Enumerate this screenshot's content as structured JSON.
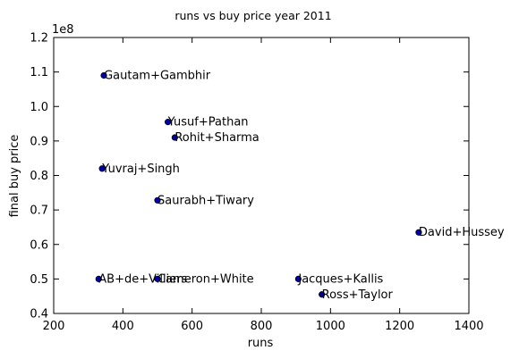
{
  "chart_data": {
    "type": "scatter",
    "title": "runs vs buy price year 2011",
    "xlabel": "runs",
    "ylabel": "final buy price",
    "y_offset_label": "1e8",
    "xlim": [
      200,
      1400
    ],
    "ylim": [
      0.4,
      1.2
    ],
    "x_ticks": [
      "200",
      "400",
      "600",
      "800",
      "1000",
      "1200",
      "1400"
    ],
    "y_ticks": [
      "0.4",
      "0.5",
      "0.6",
      "0.7",
      "0.8",
      "0.9",
      "1.0",
      "1.1",
      "1.2"
    ],
    "grid": false,
    "marker_color": "#0000aa",
    "points": [
      {
        "label": "Gautam+Gambhir",
        "x": 345,
        "y": 1.09
      },
      {
        "label": "Yusuf+Pathan",
        "x": 530,
        "y": 0.955
      },
      {
        "label": "Rohit+Sharma",
        "x": 550,
        "y": 0.91
      },
      {
        "label": "Yuvraj+Singh",
        "x": 340,
        "y": 0.82
      },
      {
        "label": "Saurabh+Tiwary",
        "x": 500,
        "y": 0.728
      },
      {
        "label": "David+Hussey",
        "x": 1255,
        "y": 0.635
      },
      {
        "label": "AB+de+Villiers",
        "x": 330,
        "y": 0.5
      },
      {
        "label": "Cameron+White",
        "x": 500,
        "y": 0.5
      },
      {
        "label": "Jacques+Kallis",
        "x": 907,
        "y": 0.5
      },
      {
        "label": "Ross+Taylor",
        "x": 975,
        "y": 0.455
      }
    ]
  }
}
